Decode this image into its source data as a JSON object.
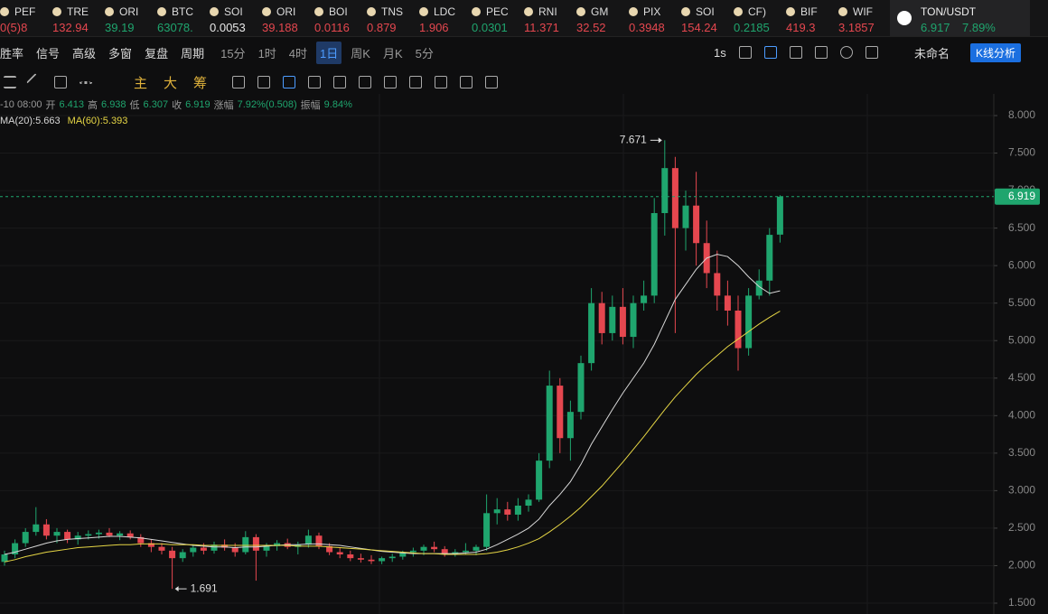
{
  "tickers": [
    {
      "symbol": "PEF",
      "price": "0(5)8",
      "color": "#e5474f"
    },
    {
      "symbol": "TRE",
      "price": "132.94",
      "color": "#e5474f"
    },
    {
      "symbol": "ORI",
      "price": "39.19",
      "color": "#1fa56e"
    },
    {
      "symbol": "BTC",
      "price": "63078.",
      "color": "#1fa56e"
    },
    {
      "symbol": "SOI",
      "price": "0.0053",
      "color": "#e8e8e8"
    },
    {
      "symbol": "ORI",
      "price": "39.188",
      "color": "#e5474f"
    },
    {
      "symbol": "BOI",
      "price": "0.0116",
      "color": "#e5474f"
    },
    {
      "symbol": "TNS",
      "price": "0.879",
      "color": "#e5474f"
    },
    {
      "symbol": "LDC",
      "price": "1.906",
      "color": "#e5474f"
    },
    {
      "symbol": "PEC",
      "price": "0.0301",
      "color": "#1fa56e"
    },
    {
      "symbol": "RNI",
      "price": "11.371",
      "color": "#e5474f"
    },
    {
      "symbol": "GM",
      "price": "32.52",
      "color": "#e5474f"
    },
    {
      "symbol": "PIX",
      "price": "0.3948",
      "color": "#e5474f"
    },
    {
      "symbol": "SOI",
      "price": "154.24",
      "color": "#e5474f"
    },
    {
      "symbol": "CF)",
      "price": "0.2185",
      "color": "#1fa56e"
    },
    {
      "symbol": "BIF",
      "price": "419.3",
      "color": "#e5474f"
    },
    {
      "symbol": "WIF",
      "price": "3.1857",
      "color": "#e5474f"
    }
  ],
  "active_ticker": {
    "symbol": "TON/USDT",
    "price": "6.917",
    "change": "7.89%"
  },
  "toolbar": {
    "left": [
      "胜率",
      "信号",
      "高级",
      "多窗",
      "复盘",
      "周期"
    ],
    "periods": [
      "15分",
      "1时",
      "4时",
      "1日",
      "周K",
      "月K",
      "5分"
    ],
    "selected_period": "1日",
    "interval": "1s",
    "layout_name": "未命名",
    "analysis_button": "K线分析"
  },
  "indicator_bar": [
    "主",
    "大",
    "筹"
  ],
  "info": {
    "date": "-10 08:00",
    "open_label": "开",
    "high_label": "高",
    "low_label": "低",
    "close_label": "收",
    "change_label": "涨幅",
    "change": "7.92%(0.508)",
    "amplitude_label": "振幅",
    "amplitude": "9.84%"
  },
  "chart_data": {
    "type": "candlestick",
    "up_color": "#1fa56e",
    "down_color": "#e5474f",
    "ylim": [
      1.5,
      8.0
    ],
    "yticks": [
      {
        "value": 8,
        "label": "8.000"
      },
      {
        "value": 7.5,
        "label": "7.500"
      },
      {
        "value": 7,
        "label": "7.000"
      },
      {
        "value": 6.5,
        "label": "6.500"
      },
      {
        "value": 6,
        "label": "6.000"
      },
      {
        "value": 5.5,
        "label": "5.500"
      },
      {
        "value": 5,
        "label": "5.000"
      },
      {
        "value": 4.5,
        "label": "4.500"
      },
      {
        "value": 4,
        "label": "4.000"
      },
      {
        "value": 3.5,
        "label": "3.500"
      },
      {
        "value": 3,
        "label": "3.000"
      },
      {
        "value": 2.5,
        "label": "2.500"
      },
      {
        "value": 2,
        "label": "2.000"
      },
      {
        "value": 1.5,
        "label": "1.500"
      }
    ],
    "grid": true,
    "candles": [
      [
        2.05,
        2.2,
        2.0,
        2.15
      ],
      [
        2.15,
        2.35,
        2.1,
        2.3
      ],
      [
        2.3,
        2.5,
        2.25,
        2.45
      ],
      [
        2.45,
        2.78,
        2.4,
        2.55
      ],
      [
        2.55,
        2.62,
        2.35,
        2.4
      ],
      [
        2.4,
        2.5,
        2.3,
        2.45
      ],
      [
        2.45,
        2.48,
        2.3,
        2.35
      ],
      [
        2.35,
        2.45,
        2.28,
        2.4
      ],
      [
        2.4,
        2.47,
        2.35,
        2.42
      ],
      [
        2.42,
        2.48,
        2.36,
        2.44
      ],
      [
        2.44,
        2.5,
        2.38,
        2.4
      ],
      [
        2.4,
        2.46,
        2.34,
        2.43
      ],
      [
        2.43,
        2.47,
        2.35,
        2.38
      ],
      [
        2.38,
        2.42,
        2.25,
        2.3
      ],
      [
        2.3,
        2.35,
        2.18,
        2.25
      ],
      [
        2.25,
        2.3,
        2.15,
        2.2
      ],
      [
        2.2,
        2.25,
        1.691,
        2.1
      ],
      [
        2.1,
        2.22,
        2.05,
        2.18
      ],
      [
        2.18,
        2.28,
        2.12,
        2.24
      ],
      [
        2.24,
        2.3,
        2.15,
        2.2
      ],
      [
        2.2,
        2.32,
        2.16,
        2.28
      ],
      [
        2.28,
        2.35,
        2.2,
        2.24
      ],
      [
        2.24,
        2.3,
        2.12,
        2.18
      ],
      [
        2.18,
        2.46,
        2.15,
        2.38
      ],
      [
        2.38,
        2.42,
        1.8,
        2.2
      ],
      [
        2.2,
        2.3,
        2.12,
        2.26
      ],
      [
        2.26,
        2.34,
        2.2,
        2.3
      ],
      [
        2.3,
        2.36,
        2.22,
        2.25
      ],
      [
        2.25,
        2.32,
        2.15,
        2.28
      ],
      [
        2.28,
        2.48,
        2.24,
        2.4
      ],
      [
        2.4,
        2.44,
        2.22,
        2.26
      ],
      [
        2.26,
        2.3,
        2.14,
        2.18
      ],
      [
        2.18,
        2.24,
        2.1,
        2.15
      ],
      [
        2.15,
        2.2,
        2.06,
        2.1
      ],
      [
        2.1,
        2.16,
        2.04,
        2.08
      ],
      [
        2.08,
        2.14,
        2.02,
        2.06
      ],
      [
        2.06,
        2.12,
        2.02,
        2.1
      ],
      [
        2.1,
        2.16,
        2.05,
        2.12
      ],
      [
        2.12,
        2.2,
        2.08,
        2.18
      ],
      [
        2.18,
        2.24,
        2.12,
        2.2
      ],
      [
        2.2,
        2.28,
        2.14,
        2.25
      ],
      [
        2.25,
        2.32,
        2.18,
        2.22
      ],
      [
        2.22,
        2.26,
        2.12,
        2.16
      ],
      [
        2.16,
        2.22,
        2.12,
        2.18
      ],
      [
        2.18,
        2.3,
        2.15,
        2.2
      ],
      [
        2.2,
        2.28,
        2.14,
        2.25
      ],
      [
        2.25,
        2.95,
        2.2,
        2.7
      ],
      [
        2.7,
        2.9,
        2.55,
        2.75
      ],
      [
        2.75,
        2.85,
        2.6,
        2.68
      ],
      [
        2.68,
        2.9,
        2.6,
        2.8
      ],
      [
        2.8,
        2.95,
        2.72,
        2.88
      ],
      [
        2.88,
        3.5,
        2.85,
        3.4
      ],
      [
        3.4,
        4.6,
        3.3,
        4.4
      ],
      [
        4.4,
        4.5,
        3.5,
        3.7
      ],
      [
        3.7,
        4.2,
        3.4,
        4.05
      ],
      [
        4.05,
        4.8,
        3.95,
        4.7
      ],
      [
        4.7,
        5.7,
        4.6,
        5.5
      ],
      [
        5.5,
        5.65,
        4.95,
        5.1
      ],
      [
        5.1,
        5.6,
        5.0,
        5.45
      ],
      [
        5.45,
        5.7,
        4.95,
        5.05
      ],
      [
        5.05,
        5.6,
        4.9,
        5.5
      ],
      [
        5.5,
        5.8,
        5.4,
        5.6
      ],
      [
        5.6,
        6.9,
        5.5,
        6.7
      ],
      [
        6.7,
        7.671,
        6.4,
        7.3
      ],
      [
        7.3,
        7.45,
        5.1,
        6.5
      ],
      [
        6.5,
        7.0,
        6.2,
        6.8
      ],
      [
        6.8,
        7.25,
        6.0,
        6.3
      ],
      [
        6.3,
        6.6,
        5.7,
        5.9
      ],
      [
        5.9,
        6.2,
        5.4,
        5.6
      ],
      [
        5.6,
        5.8,
        5.2,
        5.4
      ],
      [
        5.4,
        5.6,
        4.6,
        4.9
      ],
      [
        4.9,
        5.7,
        4.8,
        5.6
      ],
      [
        5.6,
        5.95,
        5.55,
        5.8
      ],
      [
        5.8,
        6.5,
        5.6,
        6.41
      ],
      [
        6.413,
        6.938,
        6.307,
        6.919
      ]
    ],
    "series": [
      {
        "name": "MA(20):",
        "color": "#d8d8d8",
        "values": [
          2.15,
          2.18,
          2.22,
          2.26,
          2.3,
          2.33,
          2.35,
          2.36,
          2.37,
          2.38,
          2.39,
          2.39,
          2.38,
          2.37,
          2.35,
          2.33,
          2.31,
          2.29,
          2.27,
          2.26,
          2.25,
          2.25,
          2.24,
          2.25,
          2.25,
          2.26,
          2.27,
          2.28,
          2.28,
          2.29,
          2.29,
          2.28,
          2.27,
          2.25,
          2.23,
          2.21,
          2.19,
          2.18,
          2.17,
          2.16,
          2.16,
          2.16,
          2.16,
          2.16,
          2.17,
          2.18,
          2.22,
          2.28,
          2.35,
          2.42,
          2.5,
          2.62,
          2.8,
          2.95,
          3.12,
          3.35,
          3.62,
          3.85,
          4.08,
          4.3,
          4.5,
          4.7,
          4.95,
          5.25,
          5.55,
          5.75,
          5.95,
          6.1,
          6.15,
          6.12,
          6.0,
          5.85,
          5.72,
          5.63,
          5.663
        ]
      },
      {
        "name": "MA(60):",
        "color": "#e6d645",
        "values": [
          2.05,
          2.08,
          2.12,
          2.15,
          2.18,
          2.2,
          2.22,
          2.24,
          2.25,
          2.26,
          2.27,
          2.28,
          2.28,
          2.29,
          2.29,
          2.29,
          2.28,
          2.28,
          2.28,
          2.27,
          2.27,
          2.27,
          2.27,
          2.27,
          2.27,
          2.27,
          2.27,
          2.27,
          2.26,
          2.26,
          2.26,
          2.25,
          2.24,
          2.23,
          2.22,
          2.21,
          2.2,
          2.19,
          2.18,
          2.17,
          2.16,
          2.16,
          2.15,
          2.15,
          2.15,
          2.15,
          2.16,
          2.18,
          2.21,
          2.25,
          2.3,
          2.36,
          2.45,
          2.55,
          2.66,
          2.78,
          2.92,
          3.06,
          3.22,
          3.38,
          3.55,
          3.72,
          3.9,
          4.08,
          4.25,
          4.4,
          4.55,
          4.68,
          4.8,
          4.92,
          5.02,
          5.12,
          5.22,
          5.31,
          5.393
        ]
      }
    ]
  }
}
